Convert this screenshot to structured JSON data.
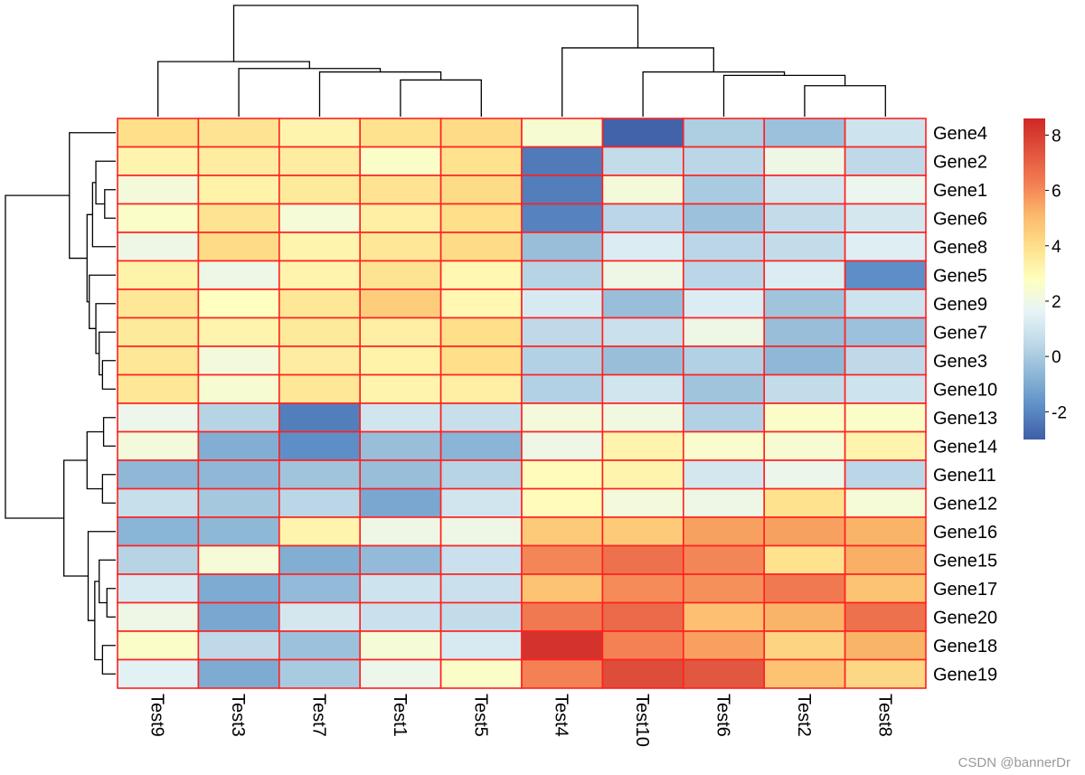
{
  "chart_data": {
    "type": "heatmap",
    "title": "",
    "columns": [
      "Test9",
      "Test3",
      "Test7",
      "Test1",
      "Test5",
      "Test4",
      "Test10",
      "Test6",
      "Test2",
      "Test8"
    ],
    "rows": [
      "Gene4",
      "Gene2",
      "Gene1",
      "Gene6",
      "Gene8",
      "Gene5",
      "Gene9",
      "Gene7",
      "Gene3",
      "Gene10",
      "Gene13",
      "Gene14",
      "Gene11",
      "Gene12",
      "Gene16",
      "Gene15",
      "Gene17",
      "Gene20",
      "Gene18",
      "Gene19"
    ],
    "values": [
      [
        4.0,
        3.8,
        3.2,
        3.9,
        4.1,
        2.4,
        -2.9,
        0.1,
        -0.3,
        0.9
      ],
      [
        3.2,
        3.5,
        3.5,
        2.6,
        3.9,
        -2.3,
        0.6,
        0.4,
        2.0,
        0.5
      ],
      [
        2.2,
        3.3,
        3.6,
        3.8,
        4.1,
        -2.2,
        2.2,
        0.0,
        1.1,
        1.8
      ],
      [
        2.6,
        3.8,
        2.3,
        3.4,
        4.0,
        -2.1,
        0.4,
        -0.3,
        0.6,
        1.1
      ],
      [
        2.0,
        4.1,
        3.2,
        3.7,
        4.1,
        -0.4,
        1.3,
        0.4,
        0.6,
        1.4
      ],
      [
        3.3,
        2.0,
        3.2,
        3.8,
        3.1,
        0.3,
        2.0,
        0.4,
        1.3,
        -1.8
      ],
      [
        3.7,
        2.8,
        3.7,
        4.5,
        3.1,
        1.2,
        -0.4,
        1.3,
        -0.2,
        0.9
      ],
      [
        3.6,
        3.2,
        3.6,
        3.4,
        4.0,
        0.5,
        0.8,
        2.0,
        -0.4,
        -0.3
      ],
      [
        3.7,
        2.2,
        3.5,
        3.3,
        4.0,
        0.2,
        -0.4,
        0.2,
        -0.6,
        0.5
      ],
      [
        3.7,
        2.4,
        3.7,
        3.2,
        3.4,
        0.2,
        1.0,
        -0.2,
        0.6,
        0.9
      ],
      [
        1.9,
        0.3,
        -2.2,
        1.0,
        0.7,
        2.2,
        2.1,
        0.2,
        2.6,
        2.6
      ],
      [
        2.2,
        -0.9,
        -1.8,
        -0.4,
        -0.7,
        2.0,
        3.2,
        2.5,
        2.4,
        3.2
      ],
      [
        -0.6,
        -0.6,
        -0.2,
        -0.4,
        0.3,
        2.9,
        3.2,
        1.1,
        1.9,
        0.4
      ],
      [
        0.7,
        -0.1,
        0.4,
        -1.1,
        1.0,
        2.9,
        2.2,
        2.0,
        3.9,
        2.3
      ],
      [
        -0.7,
        -0.6,
        3.2,
        2.0,
        2.0,
        4.6,
        4.6,
        5.6,
        5.6,
        5.2
      ],
      [
        0.3,
        2.3,
        -0.9,
        -0.5,
        0.8,
        6.1,
        6.6,
        6.1,
        3.9,
        5.3
      ],
      [
        1.2,
        -1.0,
        -0.5,
        0.9,
        0.8,
        4.8,
        6.0,
        5.9,
        6.4,
        4.8
      ],
      [
        2.0,
        -1.1,
        1.1,
        0.8,
        0.6,
        6.4,
        6.8,
        4.9,
        5.2,
        6.6
      ],
      [
        2.6,
        0.5,
        -0.3,
        2.3,
        1.2,
        8.3,
        6.2,
        5.6,
        4.3,
        5.2
      ],
      [
        1.5,
        -1.0,
        0.0,
        1.9,
        2.6,
        6.2,
        7.6,
        7.3,
        4.8,
        4.2
      ]
    ],
    "color_scale": {
      "min": -3.0,
      "max": 8.6,
      "colors": [
        "#3F5EA6",
        "#5C8DC6",
        "#8BB6D6",
        "#BFD9E8",
        "#E7F4F6",
        "#FFFFBF",
        "#FEE08B",
        "#FBB86A",
        "#F27D52",
        "#E0523D",
        "#CF2826"
      ],
      "legend_ticks": [
        -2,
        0,
        2,
        4,
        6,
        8
      ]
    },
    "cell_border_color": "#FF2020",
    "legend_placement": "right",
    "column_dendrogram": {
      "leaves": [
        "Test9",
        "Test3",
        "Test7",
        "Test1",
        "Test5",
        "Test4",
        "Test10",
        "Test6",
        "Test2",
        "Test8"
      ],
      "merges": [
        [
          4,
          5,
          3.2
        ],
        [
          3,
          -1,
          3.9
        ],
        [
          2,
          -2,
          4.2
        ],
        [
          1,
          -3,
          4.8
        ],
        [
          9,
          10,
          2.7
        ],
        [
          8,
          -5,
          3.6
        ],
        [
          7,
          -6,
          3.9
        ],
        [
          6,
          -7,
          6.0
        ],
        [
          -4,
          -8,
          9.7
        ]
      ]
    },
    "row_dendrogram": {
      "leaves": [
        "Gene4",
        "Gene2",
        "Gene1",
        "Gene6",
        "Gene8",
        "Gene5",
        "Gene9",
        "Gene7",
        "Gene3",
        "Gene10",
        "Gene13",
        "Gene14",
        "Gene11",
        "Gene12",
        "Gene16",
        "Gene15",
        "Gene17",
        "Gene20",
        "Gene18",
        "Gene19"
      ],
      "merges": [
        [
          3,
          4,
          1.0
        ],
        [
          2,
          -1,
          1.8
        ],
        [
          5,
          -2,
          2.1
        ],
        [
          9,
          10,
          1.2
        ],
        [
          8,
          -4,
          1.5
        ],
        [
          7,
          -5,
          1.8
        ],
        [
          6,
          -6,
          2.4
        ],
        [
          -3,
          -7,
          2.6
        ],
        [
          1,
          -8,
          4.2
        ],
        [
          11,
          12,
          1.1
        ],
        [
          13,
          14,
          1.2
        ],
        [
          -10,
          -11,
          2.6
        ],
        [
          17,
          18,
          0.8
        ],
        [
          16,
          -13,
          1.5
        ],
        [
          19,
          20,
          1.2
        ],
        [
          -14,
          -15,
          1.9
        ],
        [
          15,
          -16,
          2.5
        ],
        [
          -12,
          -17,
          4.7
        ],
        [
          -9,
          -18,
          10.0
        ]
      ]
    }
  },
  "watermark": "CSDN @bannerDr"
}
